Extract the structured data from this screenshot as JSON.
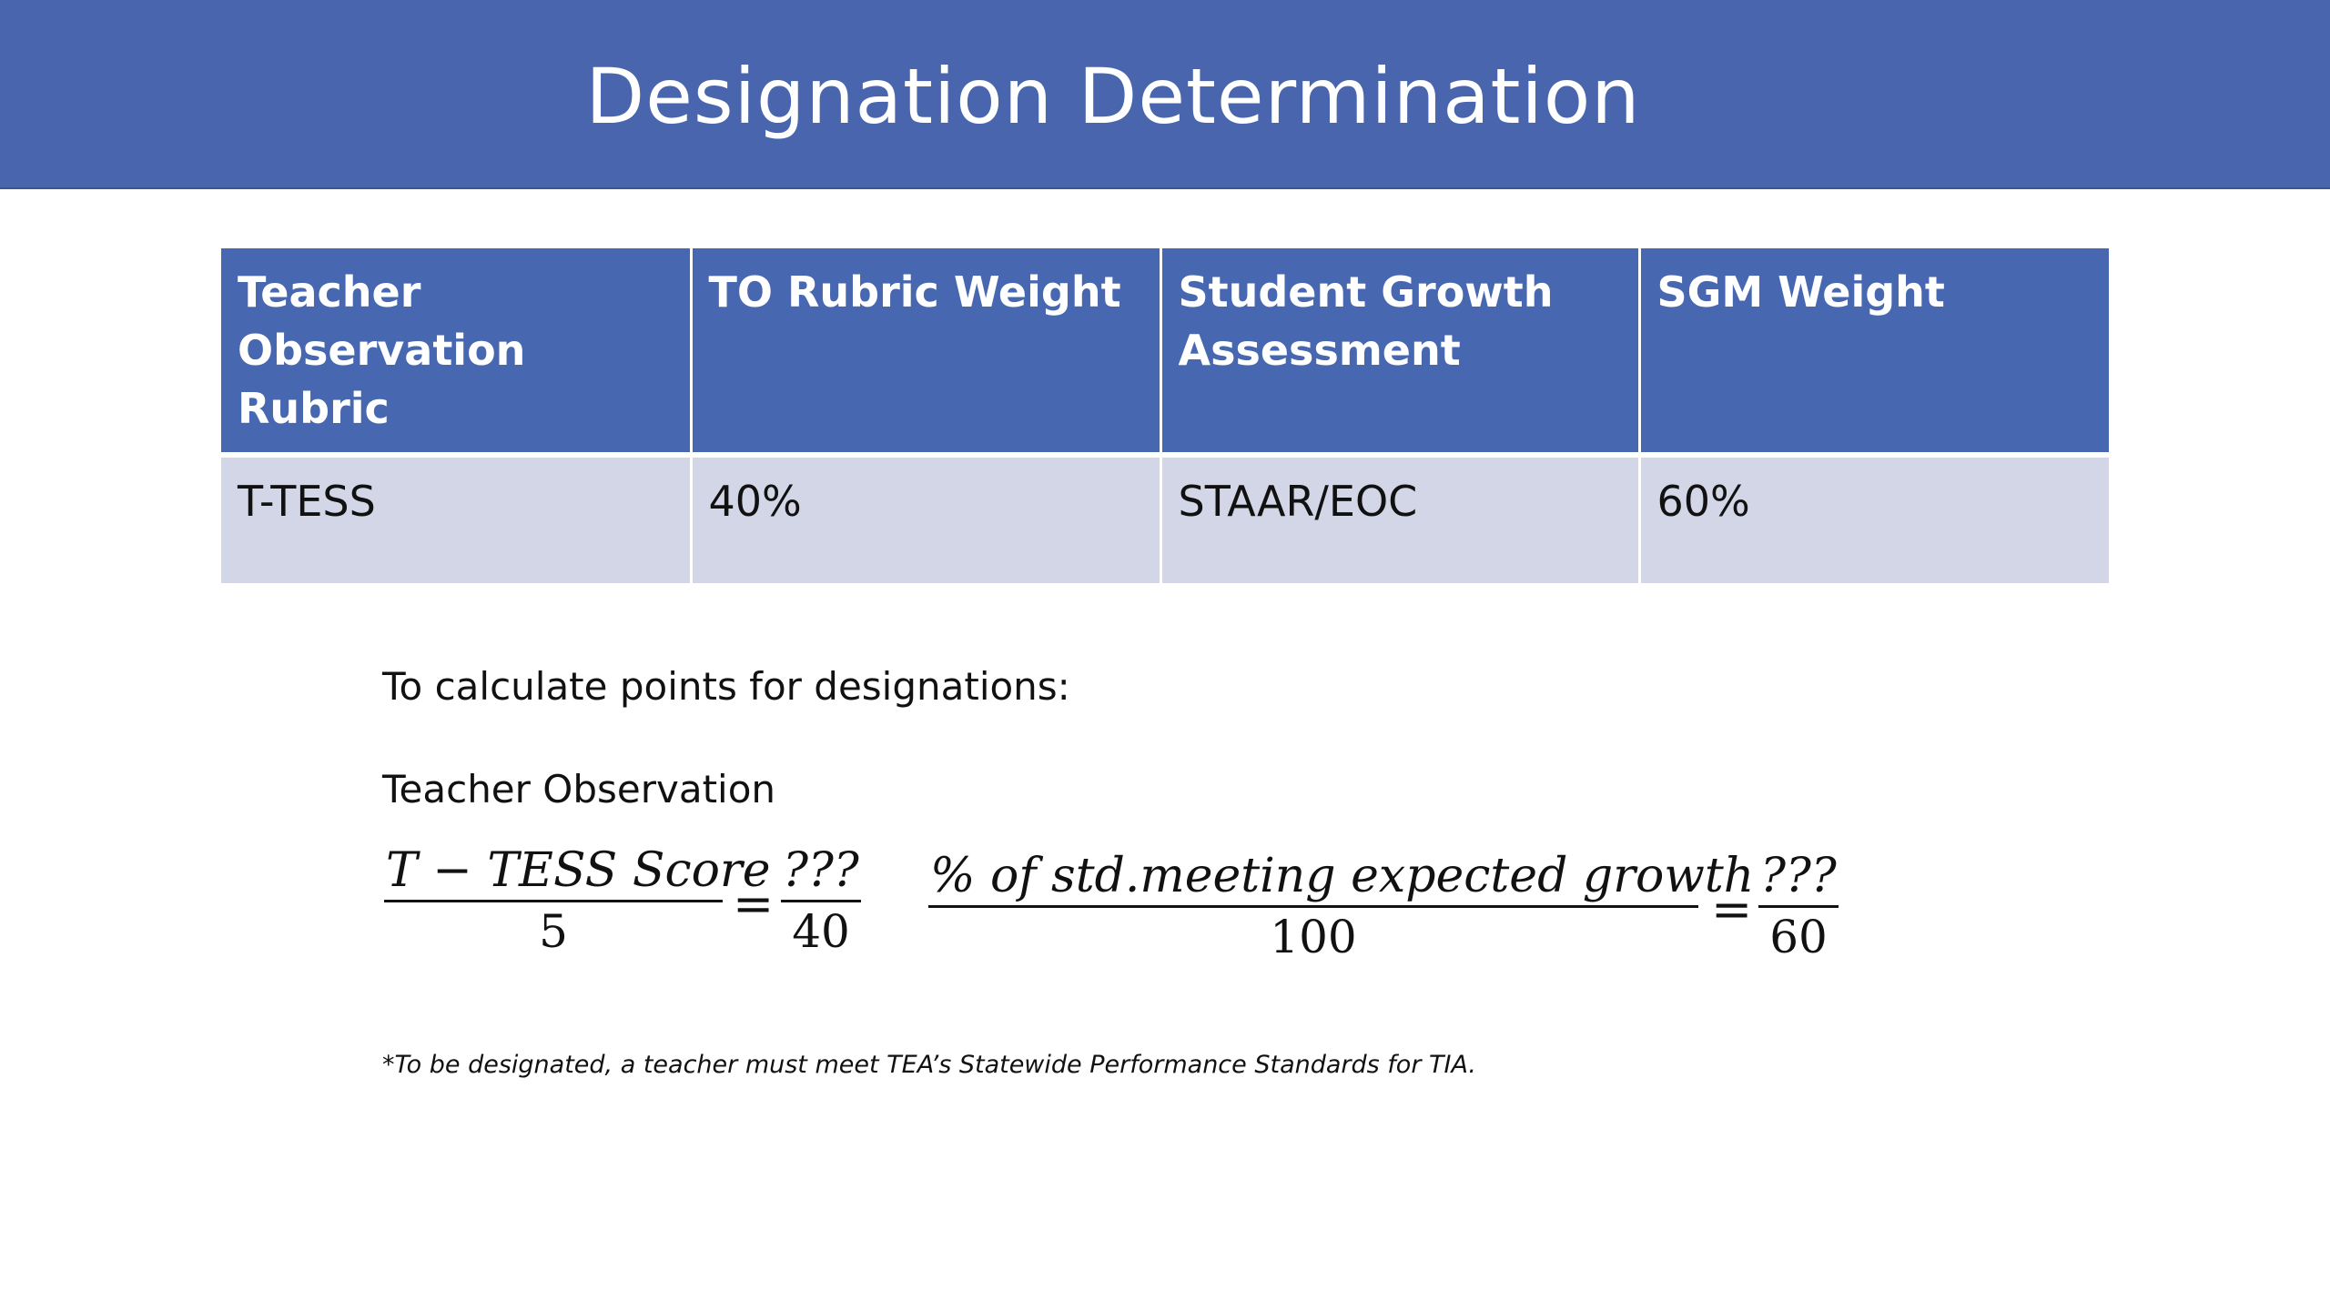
{
  "title": "Designation Determination",
  "table": {
    "headers": [
      "Teacher Observation Rubric",
      "TO Rubric Weight",
      "Student Growth Assessment",
      "SGM Weight"
    ],
    "rows": [
      [
        "T-TESS",
        "40%",
        "STAAR/EOC",
        "60%"
      ]
    ]
  },
  "instruction": "To calculate points for designations:",
  "teacher_observation_label": "Teacher Observation",
  "formula1": {
    "left_numerator": "T − TESS Score",
    "left_denominator": "5",
    "equals": "=",
    "right_numerator": "???",
    "right_denominator": "40"
  },
  "formula2": {
    "left_numerator": "% of std.meeting expected growth",
    "left_denominator": "100",
    "equals": "=",
    "right_numerator": "???",
    "right_denominator": "60"
  },
  "footnote": "*To be designated, a teacher must meet TEA’s Statewide Performance Standards for TIA.",
  "colors": {
    "title_bar": "#4865ad",
    "table_header": "#4767b1",
    "table_row": "#d3d6e6"
  }
}
